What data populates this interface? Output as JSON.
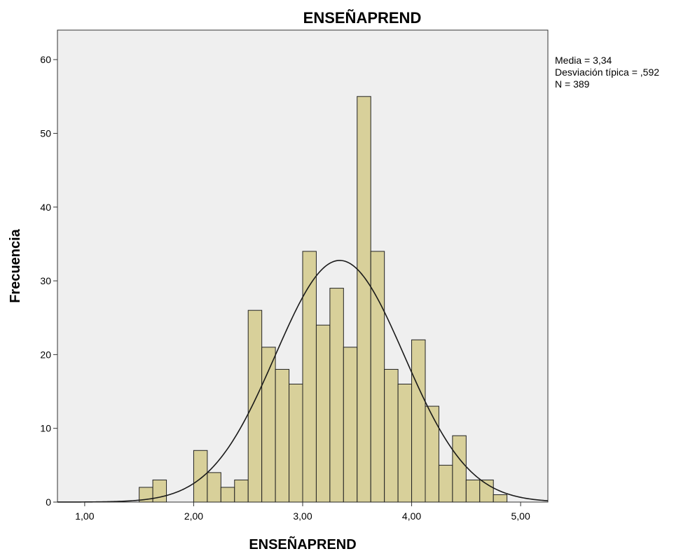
{
  "chart_data": {
    "type": "bar",
    "title": "ENSEÑAPREND",
    "xlabel": "ENSEÑAPREND",
    "ylabel": "Frecuencia",
    "xlim": [
      0.75,
      5.25
    ],
    "ylim": [
      0,
      64
    ],
    "x_ticks": [
      1.0,
      2.0,
      3.0,
      4.0,
      5.0
    ],
    "x_tick_labels": [
      "1,00",
      "2,00",
      "3,00",
      "4,00",
      "5,00"
    ],
    "y_ticks": [
      0,
      10,
      20,
      30,
      40,
      50,
      60
    ],
    "y_tick_labels": [
      "0",
      "10",
      "20",
      "30",
      "40",
      "50",
      "60"
    ],
    "bin_start": 1.5,
    "bin_width": 0.125,
    "bin_counts": [
      2,
      3,
      0,
      0,
      7,
      4,
      2,
      3,
      26,
      21,
      18,
      16,
      34,
      24,
      29,
      21,
      55,
      34,
      18,
      16,
      22,
      13,
      5,
      9,
      3,
      3,
      1
    ],
    "normal_curve": {
      "mean": 3.34,
      "sd": 0.592,
      "n": 389
    },
    "stats": {
      "media": "Media = 3,34",
      "desviacion": "Desviación típica = ,592",
      "n": "N = 389"
    },
    "bar_color": "#d8d09a",
    "plot_bg": "#efefef",
    "grid": false,
    "legend": "none"
  }
}
